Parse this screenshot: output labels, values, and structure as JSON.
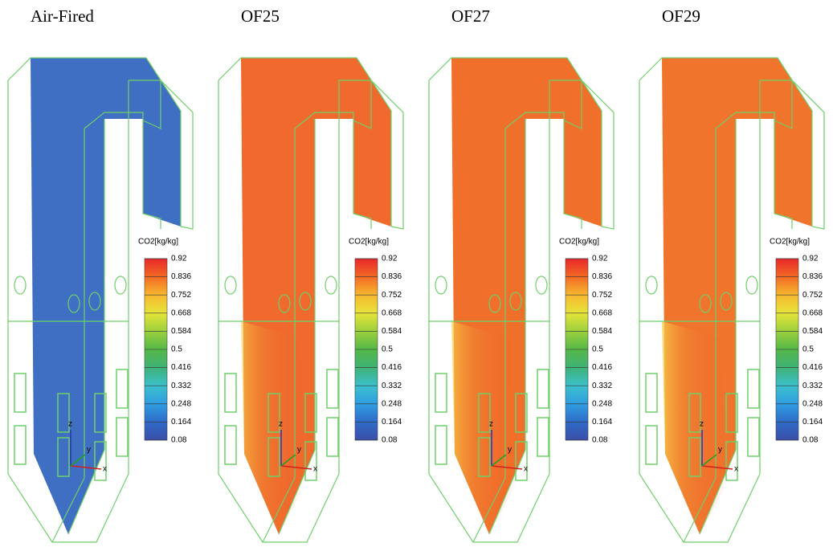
{
  "panels": [
    {
      "title": "Air-Fired",
      "legend_title": "CO2[kg/kg]",
      "legend_ticks": [
        "0.92",
        "0.836",
        "0.752",
        "0.668",
        "0.584",
        "0.5",
        "0.416",
        "0.332",
        "0.248",
        "0.164",
        "0.08"
      ],
      "axes": [
        "z",
        "y",
        "x"
      ]
    },
    {
      "title": "OF25",
      "legend_title": "CO2[kg/kg]",
      "legend_ticks": [
        "0.92",
        "0.836",
        "0.752",
        "0.668",
        "0.584",
        "0.5",
        "0.416",
        "0.332",
        "0.248",
        "0.164",
        "0.08"
      ],
      "axes": [
        "z",
        "y",
        "x"
      ]
    },
    {
      "title": "OF27",
      "legend_title": "CO2[kg/kg]",
      "legend_ticks": [
        "0.92",
        "0.836",
        "0.752",
        "0.668",
        "0.584",
        "0.5",
        "0.416",
        "0.332",
        "0.248",
        "0.164",
        "0.08"
      ],
      "axes": [
        "z",
        "y",
        "x"
      ]
    },
    {
      "title": "OF29",
      "legend_title": "CO2[kg/kg]",
      "legend_ticks": [
        "0.92",
        "0.836",
        "0.752",
        "0.668",
        "0.584",
        "0.5",
        "0.416",
        "0.332",
        "0.248",
        "0.164",
        "0.08"
      ],
      "axes": [
        "z",
        "y",
        "x"
      ]
    }
  ]
}
